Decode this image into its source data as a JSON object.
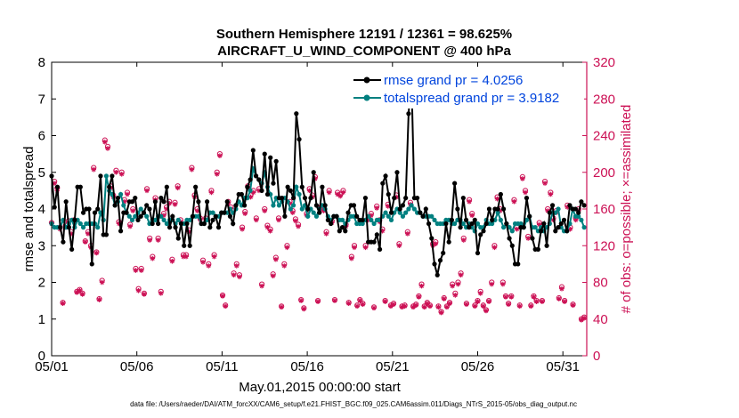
{
  "chart_data": {
    "type": "line",
    "title_line1": "Southern Hemisphere 12191 / 12361 = 98.625%",
    "title_line2": "AIRCRAFT_U_WIND_COMPONENT @ 400 hPa",
    "xlabel": "May.01,2015 00:00:00 start",
    "ylabel_left": "rmse and totalspread",
    "ylabel_right": "# of obs: o=possible; ×=assimilated",
    "footer": "data file: /Users/raeder/DAI/ATM_forcXX/CAM6_setup/f.e21.FHIST_BGC.f09_025.CAM6assim.011/Diags_NTrS_2015-05/obs_diag_output.nc",
    "x_ticks": [
      "05/01",
      "05/06",
      "05/11",
      "05/16",
      "05/21",
      "05/26",
      "05/31"
    ],
    "x_tick_days": [
      0,
      5,
      10,
      15,
      20,
      25,
      30
    ],
    "xlim": [
      0,
      31.4
    ],
    "ylim_left": [
      0,
      8
    ],
    "y_ticks_left": [
      "0",
      "1",
      "2",
      "3",
      "4",
      "5",
      "6",
      "7",
      "8"
    ],
    "ylim_right": [
      0,
      320
    ],
    "y_ticks_right": [
      "0",
      "40",
      "80",
      "120",
      "160",
      "200",
      "240",
      "280",
      "320"
    ],
    "colors": {
      "rmse": "#000000",
      "spread": "#008080",
      "obs": "#cc1155",
      "legend_text": "#0044dd",
      "axis_right": "#cc1155"
    },
    "series": [
      {
        "name": "rmse",
        "legend": "rmse grand pr = 4.0256",
        "axis": "left",
        "values": [
          4.9,
          4.05,
          4.6,
          3.5,
          3.1,
          4.2,
          3.5,
          2.9,
          3.7,
          4.6,
          4.6,
          3.9,
          4.0,
          4.0,
          2.5,
          3.9,
          4.0,
          4.9,
          3.3,
          3.3,
          4.6,
          4.9,
          4.1,
          4.3,
          3.4,
          3.9,
          3.9,
          4.2,
          4.2,
          4.3,
          3.7,
          3.8,
          3.9,
          4.1,
          4.0,
          3.6,
          4.2,
          3.6,
          4.3,
          4.2,
          4.6,
          3.5,
          3.8,
          3.5,
          3.2,
          3.6,
          3.0,
          3.6,
          3.0,
          3.8,
          4.6,
          4.2,
          3.6,
          3.6,
          4.2,
          3.5,
          3.7,
          3.8,
          3.5,
          3.9,
          3.9,
          4.2,
          3.8,
          3.6,
          4.1,
          4.4,
          4.4,
          4.1,
          4.6,
          4.8,
          5.6,
          4.9,
          4.8,
          4.5,
          5.5,
          4.4,
          5.4,
          4.7,
          5.3,
          4.3,
          4.3,
          3.8,
          4.6,
          4.5,
          4.3,
          6.6,
          5.9,
          4.6,
          4.3,
          4.0,
          4.3,
          5.0,
          4.1,
          3.9,
          4.6,
          4.1,
          3.7,
          3.6,
          3.8,
          3.8,
          3.4,
          3.5,
          3.4,
          3.9,
          4.1,
          4.1,
          3.8,
          3.7,
          3.7,
          4.3,
          3.1,
          3.1,
          3.1,
          3.3,
          2.9,
          4.7,
          4.9,
          4.4,
          3.9,
          4.3,
          5.0,
          4.0,
          4.1,
          4.3,
          6.6,
          7.6,
          4.3,
          4.3,
          3.9,
          3.8,
          4.0,
          3.6,
          3.2,
          2.5,
          2.2,
          2.6,
          2.8,
          3.6,
          3.1,
          3.7,
          4.7,
          4.0,
          3.5,
          4.3,
          3.7,
          3.5,
          3.6,
          3.7,
          2.8,
          3.3,
          3.4,
          3.6,
          4.0,
          3.7,
          4.0,
          4.0,
          4.4,
          4.0,
          3.6,
          3.2,
          3.0,
          2.5,
          2.5,
          3.5,
          3.5,
          4.3,
          3.8,
          3.2,
          2.9,
          2.9,
          3.4,
          3.6,
          3.0,
          3.9,
          4.1,
          3.4,
          3.5,
          3.6,
          3.7,
          3.4,
          4.1,
          4.0,
          4.0,
          3.9,
          4.2,
          4.1
        ]
      },
      {
        "name": "totalspread",
        "legend": "totalspread grand pr = 3.9182",
        "axis": "left",
        "values": [
          3.6,
          3.5,
          3.5,
          3.5,
          3.7,
          3.5,
          3.6,
          3.7,
          3.5,
          3.7,
          3.6,
          3.5,
          3.6,
          3.6,
          3.6,
          3.6,
          3.5,
          3.9,
          3.7,
          4.9,
          4.5,
          4.4,
          4.1,
          4.2,
          4.4,
          4.1,
          3.9,
          3.8,
          3.7,
          3.8,
          3.9,
          4.0,
          3.9,
          3.8,
          3.6,
          3.7,
          3.7,
          3.8,
          3.8,
          3.7,
          3.6,
          3.7,
          3.7,
          3.6,
          3.7,
          3.6,
          3.6,
          3.7,
          3.7,
          3.8,
          3.8,
          3.8,
          3.6,
          3.6,
          3.7,
          3.9,
          3.9,
          3.8,
          3.8,
          3.9,
          3.9,
          3.9,
          4.0,
          3.9,
          4.0,
          4.2,
          4.1,
          4.3,
          4.3,
          4.5,
          5.1,
          4.9,
          4.8,
          4.7,
          5.0,
          4.6,
          4.4,
          4.1,
          4.3,
          4.1,
          4.2,
          4.3,
          4.2,
          4.0,
          4.1,
          4.6,
          4.4,
          4.0,
          4.1,
          3.8,
          4.0,
          3.9,
          3.8,
          4.0,
          4.1,
          4.0,
          3.8,
          3.7,
          3.8,
          3.8,
          3.7,
          3.7,
          3.6,
          3.7,
          3.8,
          3.8,
          3.6,
          3.6,
          3.6,
          3.7,
          3.8,
          3.7,
          3.6,
          3.7,
          3.7,
          3.8,
          3.9,
          3.8,
          3.7,
          3.9,
          4.0,
          3.9,
          3.8,
          3.9,
          4.0,
          4.1,
          4.0,
          3.9,
          3.9,
          3.8,
          3.8,
          3.8,
          3.8,
          3.7,
          3.6,
          3.6,
          3.6,
          3.7,
          3.7,
          3.6,
          3.6,
          3.7,
          3.7,
          3.6,
          3.5,
          3.6,
          3.5,
          3.4,
          3.6,
          3.5,
          3.5,
          3.7,
          3.6,
          3.6,
          3.7,
          3.9,
          3.7,
          3.5,
          3.6,
          3.5,
          3.4,
          3.6,
          3.6,
          3.6,
          3.5,
          3.7,
          3.8,
          3.5,
          3.5,
          3.4,
          3.5,
          3.4,
          3.5,
          3.6,
          3.9,
          3.9,
          4.0,
          3.5,
          3.4,
          3.4,
          3.6,
          4.0,
          3.8,
          3.8,
          3.7,
          3.5
        ]
      },
      {
        "name": "obs_possible",
        "axis": "right",
        "values": [
          145,
          190,
          183,
          140,
          58,
          142,
          147,
          135,
          148,
          70,
          72,
          68,
          125,
          135,
          120,
          205,
          113,
          62,
          82,
          235,
          228,
          185,
          175,
          202,
          146,
          200,
          170,
          178,
          143,
          160,
          95,
          73,
          95,
          68,
          182,
          128,
          108,
          172,
          128,
          70,
          155,
          162,
          168,
          105,
          167,
          185,
          148,
          110,
          110,
          137,
          205,
          175,
          160,
          150,
          104,
          150,
          100,
          180,
          110,
          200,
          220,
          66,
          55,
          168,
          162,
          90,
          100,
          88,
          140,
          157,
          185,
          175,
          180,
          150,
          182,
          78,
          160,
          142,
          138,
          89,
          107,
          150,
          54,
          100,
          120,
          168,
          158,
          149,
          143,
          61,
          52,
          155,
          182,
          175,
          195,
          60,
          162,
          160,
          135,
          180,
          147,
          61,
          178,
          176,
          180,
          143,
          58,
          108,
          120,
          55,
          61,
          57,
          120,
          150,
          155,
          53,
          163,
          148,
          138,
          60,
          165,
          55,
          57,
          175,
          122,
          54,
          55,
          135,
          167,
          54,
          56,
          65,
          78,
          54,
          58,
          55,
          122,
          124,
          54,
          48,
          63,
          54,
          58,
          78,
          68,
          80,
          90,
          128,
          57,
          170,
          155,
          55,
          60,
          70,
          55,
          50,
          60,
          80,
          120,
          173,
          160,
          80,
          65,
          57,
          65,
          170,
          140,
          55,
          195,
          180,
          130,
          55,
          65,
          60,
          145,
          60,
          190,
          160,
          178,
          150,
          158,
          63,
          75,
          60,
          164,
          140,
          56,
          150,
          160,
          40,
          42
        ]
      },
      {
        "name": "obs_assimilated",
        "axis": "right",
        "values": [
          144,
          188,
          180,
          138,
          57,
          140,
          145,
          133,
          146,
          69,
          71,
          67,
          124,
          133,
          118,
          203,
          112,
          61,
          80,
          233,
          226,
          183,
          173,
          200,
          144,
          198,
          168,
          176,
          141,
          158,
          93,
          71,
          93,
          67,
          180,
          126,
          106,
          170,
          126,
          68,
          153,
          160,
          166,
          103,
          165,
          183,
          146,
          108,
          108,
          135,
          203,
          173,
          158,
          148,
          102,
          148,
          98,
          178,
          108,
          198,
          218,
          65,
          54,
          166,
          160,
          88,
          98,
          86,
          138,
          155,
          183,
          173,
          178,
          148,
          180,
          76,
          158,
          140,
          136,
          87,
          105,
          148,
          53,
          98,
          118,
          166,
          156,
          147,
          141,
          60,
          51,
          153,
          180,
          173,
          193,
          59,
          160,
          158,
          133,
          178,
          145,
          60,
          176,
          174,
          178,
          141,
          57,
          106,
          118,
          54,
          60,
          56,
          118,
          148,
          153,
          52,
          161,
          146,
          136,
          59,
          163,
          54,
          56,
          173,
          120,
          53,
          54,
          133,
          165,
          53,
          55,
          64,
          76,
          53,
          57,
          54,
          120,
          122,
          53,
          47,
          62,
          53,
          57,
          76,
          66,
          78,
          88,
          126,
          56,
          168,
          153,
          54,
          59,
          68,
          54,
          49,
          59,
          78,
          118,
          171,
          158,
          78,
          64,
          56,
          64,
          168,
          138,
          54,
          193,
          178,
          128,
          54,
          64,
          59,
          143,
          59,
          188,
          158,
          176,
          148,
          156,
          62,
          73,
          59,
          162,
          138,
          55,
          148,
          158,
          39,
          41
        ]
      }
    ]
  }
}
